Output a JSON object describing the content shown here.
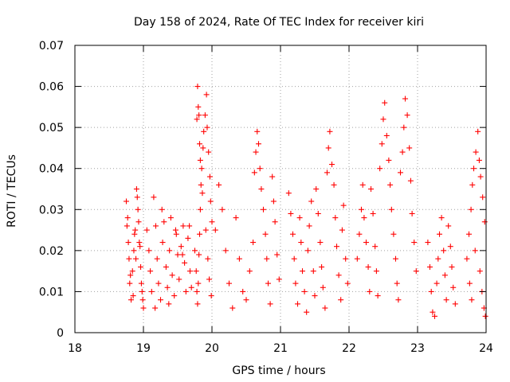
{
  "chart_data": {
    "type": "scatter",
    "title": "Day 158 of 2024, Rate Of TEC Index for receiver kiri",
    "xlabel": "GPS time / hours",
    "ylabel": "ROTI / TECUs",
    "xlim": [
      18,
      24
    ],
    "ylim": [
      0,
      0.07
    ],
    "xticks": [
      18,
      19,
      20,
      21,
      22,
      23,
      24
    ],
    "xtick_labels": [
      "18",
      "19",
      "20",
      "21",
      "22",
      "23",
      "24"
    ],
    "yticks": [
      0,
      0.01,
      0.02,
      0.03,
      0.04,
      0.05,
      0.06,
      0.07
    ],
    "ytick_labels": [
      "0",
      "0.01",
      "0.02",
      "0.03",
      "0.04",
      "0.05",
      "0.06",
      "0.07"
    ],
    "grid": true,
    "marker": "+",
    "marker_color": "#ff0000",
    "series": [
      {
        "name": "ROTI",
        "x": [
          18.75,
          18.77,
          18.78,
          18.79,
          18.8,
          18.82,
          18.84,
          18.86,
          18.88,
          18.9,
          18.92,
          18.94,
          18.96,
          18.98,
          19.0,
          18.76,
          18.81,
          18.85,
          18.89,
          18.93,
          18.97,
          18.91,
          18.95,
          18.99,
          18.87,
          19.05,
          19.08,
          19.1,
          19.12,
          19.15,
          19.18,
          19.2,
          19.22,
          19.25,
          19.28,
          19.3,
          19.33,
          19.35,
          19.38,
          19.4,
          19.42,
          19.45,
          19.48,
          19.5,
          19.52,
          19.55,
          19.58,
          19.6,
          19.62,
          19.65,
          19.68,
          19.7,
          19.17,
          19.27,
          19.37,
          19.47,
          19.57,
          19.67,
          19.75,
          19.77,
          19.78,
          19.79,
          19.8,
          19.81,
          19.82,
          19.83,
          19.84,
          19.85,
          19.87,
          19.88,
          19.9,
          19.92,
          19.93,
          19.95,
          19.97,
          19.98,
          20.0,
          19.79,
          19.8,
          19.81,
          19.82,
          19.78,
          19.83,
          19.86,
          19.91,
          19.94,
          19.96,
          19.99,
          20.05,
          20.1,
          20.15,
          20.2,
          20.25,
          20.3,
          20.35,
          20.4,
          20.45,
          20.5,
          20.55,
          20.6,
          20.62,
          20.64,
          20.66,
          20.68,
          20.7,
          20.72,
          20.75,
          20.78,
          20.8,
          20.82,
          20.85,
          20.88,
          20.9,
          20.92,
          20.95,
          20.98,
          21.12,
          21.15,
          21.18,
          21.2,
          21.22,
          21.25,
          21.28,
          21.3,
          21.32,
          21.35,
          21.38,
          21.4,
          21.42,
          21.45,
          21.48,
          21.5,
          21.52,
          21.55,
          21.58,
          21.6,
          21.62,
          21.65,
          21.68,
          21.7,
          21.72,
          21.75,
          21.78,
          21.8,
          21.82,
          21.85,
          21.88,
          21.9,
          21.92,
          21.95,
          21.98,
          22.12,
          22.15,
          22.18,
          22.2,
          22.22,
          22.25,
          22.28,
          22.3,
          22.32,
          22.35,
          22.38,
          22.4,
          22.42,
          22.45,
          22.48,
          22.5,
          22.52,
          22.55,
          22.58,
          22.6,
          22.62,
          22.65,
          22.68,
          22.7,
          22.72,
          22.75,
          22.78,
          22.8,
          22.82,
          22.85,
          22.88,
          22.9,
          22.92,
          22.95,
          22.98,
          23.15,
          23.18,
          23.2,
          23.22,
          23.25,
          23.28,
          23.3,
          23.32,
          23.35,
          23.38,
          23.4,
          23.42,
          23.45,
          23.48,
          23.5,
          23.52,
          23.55,
          23.72,
          23.75,
          23.78,
          23.8,
          23.82,
          23.85,
          23.88,
          23.9,
          23.92,
          23.95,
          23.98,
          23.76,
          23.79,
          23.84,
          23.91,
          23.94,
          23.97,
          23.99
        ],
        "y": [
          0.032,
          0.028,
          0.022,
          0.018,
          0.012,
          0.008,
          0.015,
          0.02,
          0.025,
          0.035,
          0.03,
          0.022,
          0.016,
          0.01,
          0.006,
          0.026,
          0.014,
          0.009,
          0.018,
          0.027,
          0.012,
          0.033,
          0.021,
          0.008,
          0.024,
          0.025,
          0.02,
          0.015,
          0.01,
          0.033,
          0.026,
          0.018,
          0.012,
          0.008,
          0.022,
          0.027,
          0.016,
          0.011,
          0.02,
          0.028,
          0.014,
          0.009,
          0.024,
          0.019,
          0.013,
          0.021,
          0.026,
          0.017,
          0.01,
          0.023,
          0.015,
          0.011,
          0.006,
          0.03,
          0.007,
          0.025,
          0.019,
          0.026,
          0.02,
          0.015,
          0.01,
          0.007,
          0.012,
          0.019,
          0.024,
          0.03,
          0.036,
          0.04,
          0.045,
          0.049,
          0.053,
          0.058,
          0.05,
          0.044,
          0.038,
          0.032,
          0.027,
          0.06,
          0.055,
          0.053,
          0.046,
          0.052,
          0.042,
          0.034,
          0.025,
          0.018,
          0.013,
          0.009,
          0.025,
          0.036,
          0.03,
          0.02,
          0.012,
          0.006,
          0.028,
          0.018,
          0.01,
          0.008,
          0.015,
          0.022,
          0.039,
          0.044,
          0.049,
          0.046,
          0.04,
          0.035,
          0.03,
          0.024,
          0.018,
          0.012,
          0.007,
          0.038,
          0.032,
          0.027,
          0.019,
          0.013,
          0.034,
          0.029,
          0.024,
          0.018,
          0.012,
          0.007,
          0.028,
          0.022,
          0.015,
          0.01,
          0.005,
          0.02,
          0.026,
          0.032,
          0.015,
          0.009,
          0.035,
          0.029,
          0.022,
          0.016,
          0.011,
          0.006,
          0.039,
          0.045,
          0.049,
          0.041,
          0.036,
          0.028,
          0.021,
          0.014,
          0.008,
          0.025,
          0.031,
          0.018,
          0.012,
          0.018,
          0.024,
          0.03,
          0.036,
          0.028,
          0.022,
          0.016,
          0.01,
          0.035,
          0.029,
          0.021,
          0.015,
          0.009,
          0.04,
          0.046,
          0.052,
          0.056,
          0.048,
          0.042,
          0.036,
          0.03,
          0.024,
          0.018,
          0.012,
          0.008,
          0.039,
          0.044,
          0.05,
          0.057,
          0.053,
          0.045,
          0.037,
          0.029,
          0.022,
          0.015,
          0.022,
          0.016,
          0.01,
          0.005,
          0.004,
          0.012,
          0.018,
          0.024,
          0.028,
          0.02,
          0.014,
          0.008,
          0.026,
          0.021,
          0.016,
          0.011,
          0.007,
          0.018,
          0.024,
          0.03,
          0.036,
          0.04,
          0.044,
          0.049,
          0.042,
          0.038,
          0.033,
          0.027,
          0.012,
          0.008,
          0.02,
          0.015,
          0.01,
          0.006,
          0.004
        ]
      }
    ]
  }
}
